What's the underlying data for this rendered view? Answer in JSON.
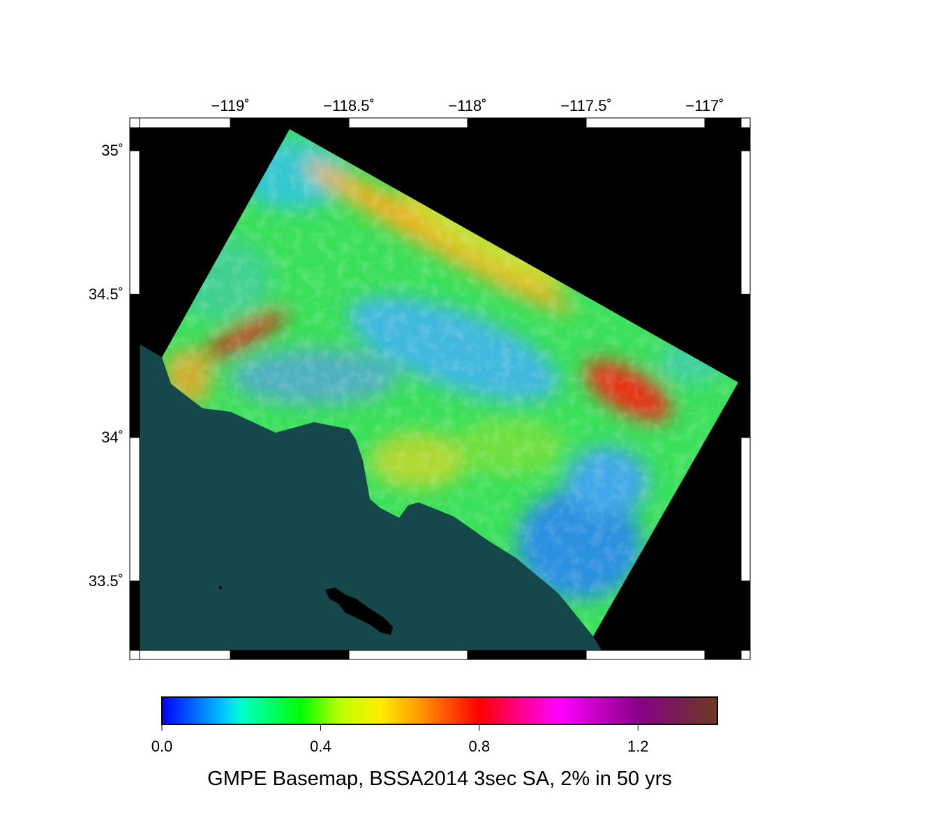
{
  "map": {
    "title": "GMPE Basemap, BSSA2014 3sec SA, 2% in 50 yrs",
    "lon_ticks": [
      {
        "value": -119,
        "label": "−119˚"
      },
      {
        "value": -118.5,
        "label": "−118.5˚"
      },
      {
        "value": -118,
        "label": "−118˚"
      },
      {
        "value": -117.5,
        "label": "−117.5˚"
      },
      {
        "value": -117,
        "label": "−117˚"
      }
    ],
    "lat_ticks": [
      {
        "value": 35,
        "label": "35˚"
      },
      {
        "value": 34.5,
        "label": "34.5˚"
      },
      {
        "value": 34,
        "label": "34˚"
      },
      {
        "value": 33.5,
        "label": "33.5˚"
      }
    ],
    "colors": {
      "ocean": "#15484a",
      "nodata": "#000000",
      "island": "#000000"
    }
  },
  "colorbar": {
    "range": [
      0.0,
      1.4
    ],
    "ticks": [
      {
        "value": 0.0,
        "label": "0.0"
      },
      {
        "value": 0.4,
        "label": "0.4"
      },
      {
        "value": 0.8,
        "label": "0.8"
      },
      {
        "value": 1.2,
        "label": "1.2"
      }
    ],
    "stops": [
      {
        "value": 0.0,
        "color": "#0000ff"
      },
      {
        "value": 0.16,
        "color": "#00ccff"
      },
      {
        "value": 0.2,
        "color": "#00ffcc"
      },
      {
        "value": 0.35,
        "color": "#00ff00"
      },
      {
        "value": 0.45,
        "color": "#bbff00"
      },
      {
        "value": 0.55,
        "color": "#ffee00"
      },
      {
        "value": 0.65,
        "color": "#ff9900"
      },
      {
        "value": 0.8,
        "color": "#ff0000"
      },
      {
        "value": 0.9,
        "color": "#ff0088"
      },
      {
        "value": 1.0,
        "color": "#ff00ff"
      },
      {
        "value": 1.2,
        "color": "#880088"
      },
      {
        "value": 1.4,
        "color": "#6b3a20"
      }
    ]
  }
}
